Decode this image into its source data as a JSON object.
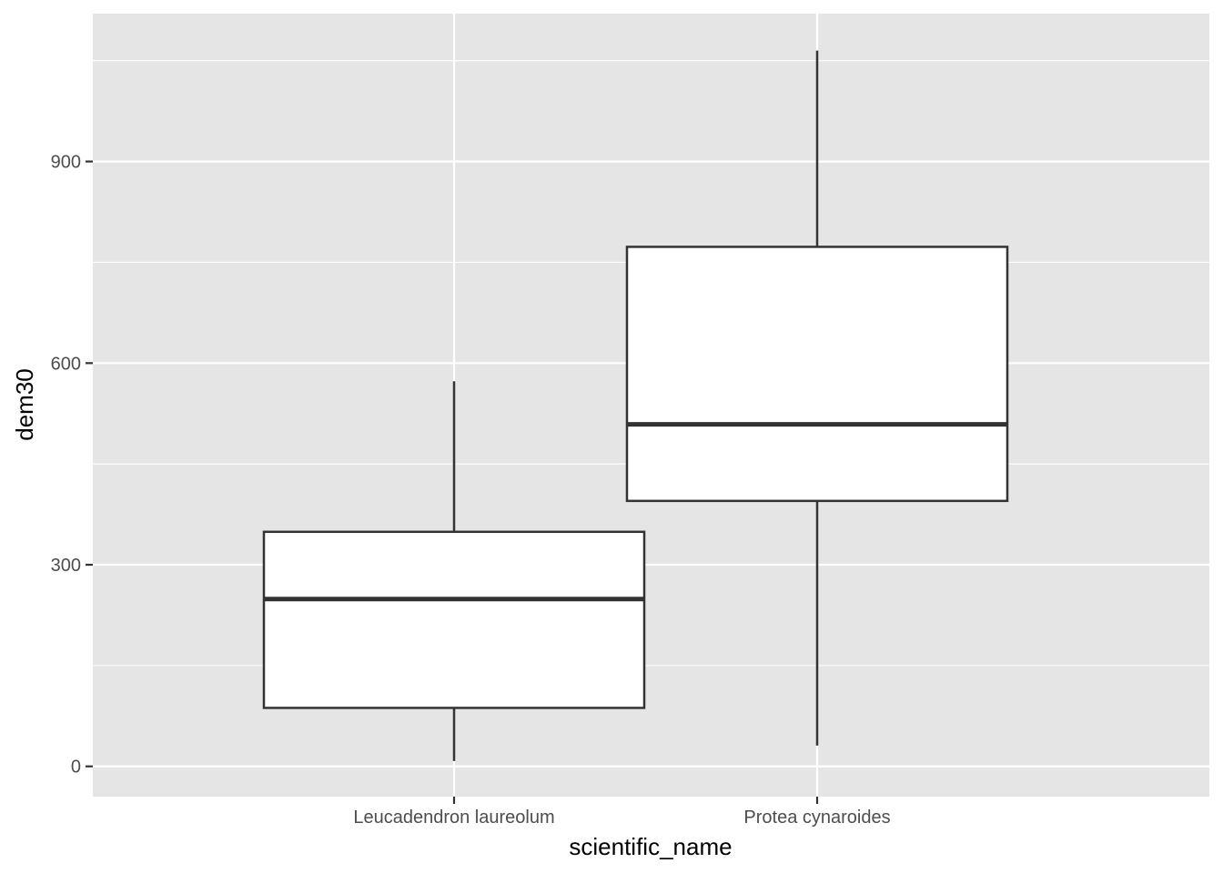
{
  "chart_data": {
    "type": "boxplot",
    "xlabel": "scientific_name",
    "ylabel": "dem30",
    "ylim": [
      -45,
      1120
    ],
    "yticks": [
      0,
      300,
      600,
      900
    ],
    "yticks_labels": [
      "0",
      "300",
      "600",
      "900"
    ],
    "grid": true,
    "categories": [
      "Leucadendron laureolum",
      "Protea cynaroides"
    ],
    "boxes": [
      {
        "category": "Leucadendron laureolum",
        "whisker_low": 8,
        "q1": 87,
        "median": 249,
        "q3": 349,
        "whisker_high": 573
      },
      {
        "category": "Protea cynaroides",
        "whisker_low": 31,
        "q1": 395,
        "median": 509,
        "q3": 773,
        "whisker_high": 1065
      }
    ]
  },
  "colors": {
    "panel_background": "#e5e5e5",
    "grid": "#ffffff",
    "box_fill": "#ffffff",
    "box_stroke": "#333333",
    "tick_text": "#4d4d4d",
    "axis_title": "#000000"
  }
}
